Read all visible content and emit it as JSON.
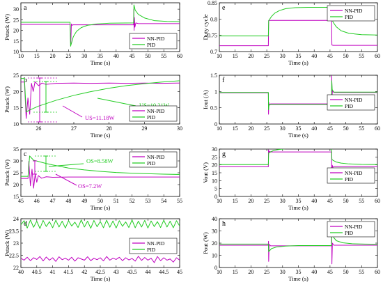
{
  "chart_data": [
    {
      "type": "line",
      "panel_label": "a",
      "xlabel": "Time (s)",
      "ylabel": "Pstack (W)",
      "xlim": [
        10,
        60
      ],
      "ylim": [
        10,
        33
      ],
      "xticks": [
        10,
        15,
        20,
        25,
        30,
        35,
        40,
        45,
        50,
        55,
        60
      ],
      "yticks": [
        10,
        15,
        20,
        25,
        30
      ],
      "legend": "bottom-right",
      "series": [
        {
          "name": "NN-PID",
          "color": "#c000c0",
          "x": [
            10,
            25.5,
            25.7,
            25.9,
            26.1,
            26.5,
            30,
            45.5,
            45.55,
            45.65,
            45.75,
            45.9,
            46.2,
            47,
            60
          ],
          "y": [
            22.8,
            22.8,
            13,
            23,
            22.4,
            22.6,
            22.6,
            22.6,
            30,
            20,
            26,
            21.5,
            23.5,
            23.2,
            23.2
          ]
        },
        {
          "name": "PID",
          "color": "#22cc22",
          "x": [
            10,
            25.5,
            25.65,
            26.5,
            27.5,
            29,
            31,
            34,
            38,
            45.5,
            45.6,
            46,
            47,
            49,
            52,
            56,
            60
          ],
          "y": [
            23.8,
            23.8,
            12.5,
            17,
            19.5,
            21.3,
            22.4,
            23,
            23.4,
            23.5,
            32,
            29.5,
            27.5,
            25.8,
            24.6,
            24.2,
            24.1
          ]
        }
      ]
    },
    {
      "type": "line",
      "panel_label": "b",
      "xlabel": "Time (s)",
      "ylabel": "Pstack (W)",
      "xlim": [
        25.5,
        30
      ],
      "ylim": [
        10,
        25
      ],
      "xticks": [
        26,
        27,
        28,
        29,
        30
      ],
      "xtick_labels": [
        "26",
        "27",
        "28",
        "29",
        "30"
      ],
      "yticks": [
        10,
        15,
        20,
        25
      ],
      "legend": "bottom-right",
      "annotations": [
        {
          "text": "US=10.21W",
          "color": "#22cc22"
        },
        {
          "text": "US=11.18W",
          "color": "#c000c0"
        }
      ],
      "series": [
        {
          "name": "NN-PID",
          "color": "#c000c0",
          "x": [
            25.5,
            25.6,
            25.65,
            25.7,
            25.75,
            25.8,
            25.85,
            25.9,
            26.0,
            26.1,
            26.2,
            26.5,
            27,
            27.5,
            28,
            28.5,
            29,
            29.5,
            30
          ],
          "y": [
            22.9,
            22.9,
            11.7,
            18,
            13,
            22.5,
            20,
            23,
            21.8,
            22.6,
            22.2,
            22.5,
            22.6,
            22.5,
            22.6,
            22.5,
            22.6,
            22.5,
            22.6
          ]
        },
        {
          "name": "PID",
          "color": "#22cc22",
          "x": [
            25.5,
            25.6,
            25.65,
            25.75,
            26,
            26.5,
            27,
            27.5,
            28,
            28.5,
            29,
            29.5,
            30
          ],
          "y": [
            24,
            24,
            13.7,
            14.3,
            15.5,
            17.3,
            18.8,
            20,
            21,
            21.8,
            22.4,
            22.9,
            23.3
          ]
        }
      ]
    },
    {
      "type": "line",
      "panel_label": "c",
      "xlabel": "Time (s)",
      "ylabel": "Pstack (W)",
      "xlim": [
        45,
        55
      ],
      "ylim": [
        15,
        35
      ],
      "xticks": [
        45,
        46,
        47,
        48,
        49,
        50,
        51,
        52,
        53,
        54,
        55
      ],
      "yticks": [
        15,
        20,
        25,
        30,
        35
      ],
      "legend": "top-right",
      "annotations": [
        {
          "text": "OS=8.58W",
          "color": "#22cc22"
        },
        {
          "text": "OS=7.2W",
          "color": "#c000c0"
        }
      ],
      "series": [
        {
          "name": "NN-PID",
          "color": "#c000c0",
          "x": [
            45,
            45.45,
            45.5,
            45.6,
            45.7,
            45.8,
            45.9,
            46.0,
            46.1,
            46.3,
            46.6,
            47,
            48,
            50,
            52,
            55
          ],
          "y": [
            22.6,
            22.6,
            29.8,
            19.5,
            26.5,
            18.5,
            24.5,
            21,
            23.8,
            22.7,
            23.3,
            23.1,
            23.2,
            23.2,
            23.2,
            23.2
          ]
        },
        {
          "name": "PID",
          "color": "#22cc22",
          "x": [
            45,
            45.45,
            45.55,
            45.8,
            46.2,
            46.6,
            47,
            48,
            49,
            50,
            51,
            52,
            53,
            54,
            55
          ],
          "y": [
            23.5,
            23.5,
            32.1,
            30.3,
            29.6,
            28.9,
            28.3,
            27,
            26.2,
            25.6,
            25.1,
            24.8,
            24.6,
            24.4,
            24.3
          ]
        }
      ]
    },
    {
      "type": "line",
      "panel_label": "d",
      "xlabel": "Time (s)",
      "ylabel": "Pstack (W)",
      "xlim": [
        40,
        45
      ],
      "ylim": [
        22,
        24
      ],
      "xticks": [
        40,
        40.5,
        41,
        41.5,
        42,
        42.5,
        43,
        43.5,
        44,
        44.5,
        45
      ],
      "yticks": [
        22,
        22.5,
        23,
        23.5,
        24
      ],
      "legend": "center-right",
      "series": [
        {
          "name": "NN-PID",
          "color": "#c000c0",
          "x": [
            40,
            40.1,
            40.2,
            40.3,
            40.4,
            40.5,
            40.6,
            40.7,
            40.8,
            40.9,
            41,
            41.1,
            41.2,
            41.3,
            41.4,
            41.5,
            41.6,
            41.7,
            41.8,
            41.9,
            42,
            42.1,
            42.2,
            42.3,
            42.4,
            42.5,
            42.6,
            42.7,
            42.8,
            42.9,
            43,
            43.1,
            43.2,
            43.3,
            43.4,
            43.5,
            43.6,
            43.7,
            43.8,
            43.9,
            44,
            44.1,
            44.2,
            44.3,
            44.4,
            44.5,
            44.6,
            44.7,
            44.8,
            44.9,
            45
          ],
          "y": [
            22.38,
            22.3,
            22.42,
            22.28,
            22.4,
            22.33,
            22.45,
            22.27,
            22.43,
            22.3,
            22.4,
            22.25,
            22.44,
            22.32,
            22.38,
            22.3,
            22.42,
            22.26,
            22.4,
            22.35,
            22.3,
            22.44,
            22.28,
            22.38,
            22.32,
            22.4,
            22.27,
            22.45,
            22.3,
            22.38,
            22.33,
            22.42,
            22.28,
            22.4,
            22.31,
            22.37,
            22.26,
            22.46,
            22.29,
            22.41,
            22.3,
            22.38,
            22.2,
            22.45,
            22.28,
            22.4,
            22.3,
            22.35,
            22.22,
            22.4,
            22.3
          ]
        },
        {
          "name": "PID",
          "color": "#22cc22",
          "x": [
            40,
            40.1,
            40.2,
            40.3,
            40.4,
            40.5,
            40.6,
            40.7,
            40.8,
            40.9,
            41,
            41.1,
            41.2,
            41.3,
            41.4,
            41.5,
            41.6,
            41.7,
            41.8,
            41.9,
            42,
            42.1,
            42.2,
            42.3,
            42.4,
            42.5,
            42.6,
            42.7,
            42.8,
            42.9,
            43,
            43.1,
            43.2,
            43.3,
            43.4,
            43.5,
            43.6,
            43.7,
            43.8,
            43.9,
            44,
            44.1,
            44.2,
            44.3,
            44.4,
            44.5,
            44.6,
            44.7,
            44.8,
            44.9,
            45
          ],
          "y": [
            23.75,
            23.92,
            23.62,
            23.95,
            23.65,
            23.9,
            23.6,
            23.93,
            23.68,
            23.88,
            23.63,
            23.94,
            23.66,
            23.9,
            23.62,
            23.92,
            23.7,
            23.86,
            23.64,
            23.95,
            23.66,
            23.9,
            23.61,
            23.93,
            23.67,
            23.89,
            23.63,
            23.94,
            23.65,
            23.91,
            23.62,
            23.92,
            23.69,
            23.87,
            23.64,
            23.95,
            23.63,
            23.9,
            23.66,
            23.93,
            23.62,
            23.91,
            23.68,
            23.88,
            23.64,
            23.94,
            23.66,
            23.9,
            23.63,
            23.92,
            23.7
          ]
        }
      ]
    },
    {
      "type": "line",
      "panel_label": "e",
      "xlabel": "Time (s)",
      "ylabel": "Duty cycle",
      "xlim": [
        10,
        60
      ],
      "ylim": [
        0.7,
        0.85
      ],
      "xticks": [
        10,
        15,
        20,
        25,
        30,
        35,
        40,
        45,
        50,
        55,
        60
      ],
      "yticks": [
        0.7,
        0.75,
        0.8,
        0.85
      ],
      "legend": "top-right",
      "series": [
        {
          "name": "NN-PID",
          "color": "#c000c0",
          "x": [
            10,
            25.5,
            25.6,
            26,
            45.5,
            45.6,
            46,
            60
          ],
          "y": [
            0.718,
            0.718,
            0.795,
            0.796,
            0.796,
            0.72,
            0.719,
            0.719
          ]
        },
        {
          "name": "PID",
          "color": "#22cc22",
          "x": [
            10,
            25.5,
            25.6,
            26.5,
            27.5,
            29,
            31,
            34,
            38,
            45.5,
            45.6,
            46,
            47,
            48.5,
            51,
            55,
            60
          ],
          "y": [
            0.748,
            0.748,
            0.795,
            0.808,
            0.818,
            0.826,
            0.832,
            0.835,
            0.836,
            0.836,
            0.8,
            0.79,
            0.776,
            0.764,
            0.756,
            0.752,
            0.751
          ]
        }
      ]
    },
    {
      "type": "line",
      "panel_label": "f",
      "xlabel": "Time (s)",
      "ylabel": "Iout (A)",
      "xlim": [
        10,
        60
      ],
      "ylim": [
        0,
        1.5
      ],
      "xticks": [
        10,
        15,
        20,
        25,
        30,
        35,
        40,
        45,
        50,
        55,
        60
      ],
      "yticks": [
        0,
        0.5,
        1,
        1.5
      ],
      "legend": "center-right",
      "series": [
        {
          "name": "NN-PID",
          "color": "#c000c0",
          "x": [
            10,
            25.5,
            25.55,
            25.65,
            25.8,
            26.2,
            45.5,
            45.55,
            45.65,
            45.8,
            46.2,
            60
          ],
          "y": [
            0.96,
            0.96,
            0.3,
            0.66,
            0.58,
            0.62,
            0.62,
            1.48,
            0.88,
            1.02,
            0.97,
            0.97
          ]
        },
        {
          "name": "PID",
          "color": "#22cc22",
          "x": [
            10,
            25.5,
            25.55,
            25.7,
            26.2,
            45.5,
            45.55,
            45.7,
            46.2,
            60
          ],
          "y": [
            0.97,
            0.97,
            0.44,
            0.58,
            0.6,
            0.6,
            1.33,
            1.06,
            0.98,
            0.98
          ]
        }
      ]
    },
    {
      "type": "line",
      "panel_label": "g",
      "xlabel": "Time (s)",
      "ylabel": "Vout (V)",
      "xlim": [
        10,
        60
      ],
      "ylim": [
        0,
        30
      ],
      "xticks": [
        10,
        15,
        20,
        25,
        30,
        35,
        40,
        45,
        50,
        55,
        60
      ],
      "yticks": [
        0,
        5,
        10,
        15,
        20,
        25,
        30
      ],
      "legend": "center-right",
      "series": [
        {
          "name": "NN-PID",
          "color": "#c000c0",
          "x": [
            10,
            25.5,
            25.55,
            25.7,
            25.9,
            26.3,
            45.5,
            45.55,
            45.7,
            45.9,
            46.3,
            60
          ],
          "y": [
            18.8,
            18.8,
            29.5,
            27.5,
            28.6,
            28.2,
            28.2,
            15,
            19.8,
            18.5,
            18.9,
            18.9
          ]
        },
        {
          "name": "PID",
          "color": "#22cc22",
          "x": [
            10,
            25.5,
            25.6,
            26.5,
            27.5,
            29,
            31,
            34,
            38,
            45.5,
            45.6,
            46,
            47,
            48.5,
            51,
            55,
            60
          ],
          "y": [
            20.2,
            20.2,
            27.5,
            28.5,
            29.3,
            29.8,
            30.2,
            30.4,
            30.4,
            30.4,
            23.5,
            22.8,
            21.8,
            21.1,
            20.6,
            20.3,
            20.2
          ]
        }
      ]
    },
    {
      "type": "line",
      "panel_label": "h",
      "xlabel": "Time (s)",
      "ylabel": "Pout (W)",
      "xlim": [
        10,
        60
      ],
      "ylim": [
        0,
        40
      ],
      "xticks": [
        10,
        15,
        20,
        25,
        30,
        35,
        40,
        45,
        50,
        55,
        60
      ],
      "yticks": [
        0,
        10,
        20,
        30,
        40
      ],
      "legend": "top-right",
      "series": [
        {
          "name": "NN-PID",
          "color": "#c000c0",
          "x": [
            10,
            25.5,
            25.55,
            25.6,
            25.75,
            26.2,
            45.5,
            45.55,
            45.6,
            45.75,
            46.2,
            60
          ],
          "y": [
            18.3,
            18.3,
            21.5,
            5,
            19,
            17.8,
            17.8,
            36,
            3,
            20,
            18.3,
            18.3
          ]
        },
        {
          "name": "PID",
          "color": "#22cc22",
          "x": [
            10,
            25.5,
            25.6,
            26.5,
            28,
            31,
            35,
            45.5,
            45.6,
            46.2,
            47,
            49,
            52,
            56,
            60
          ],
          "y": [
            19.2,
            19.2,
            13,
            15.5,
            16.8,
            17.6,
            18,
            18,
            29,
            24.5,
            22,
            20.3,
            19.5,
            19.2,
            19.1
          ]
        }
      ]
    }
  ]
}
